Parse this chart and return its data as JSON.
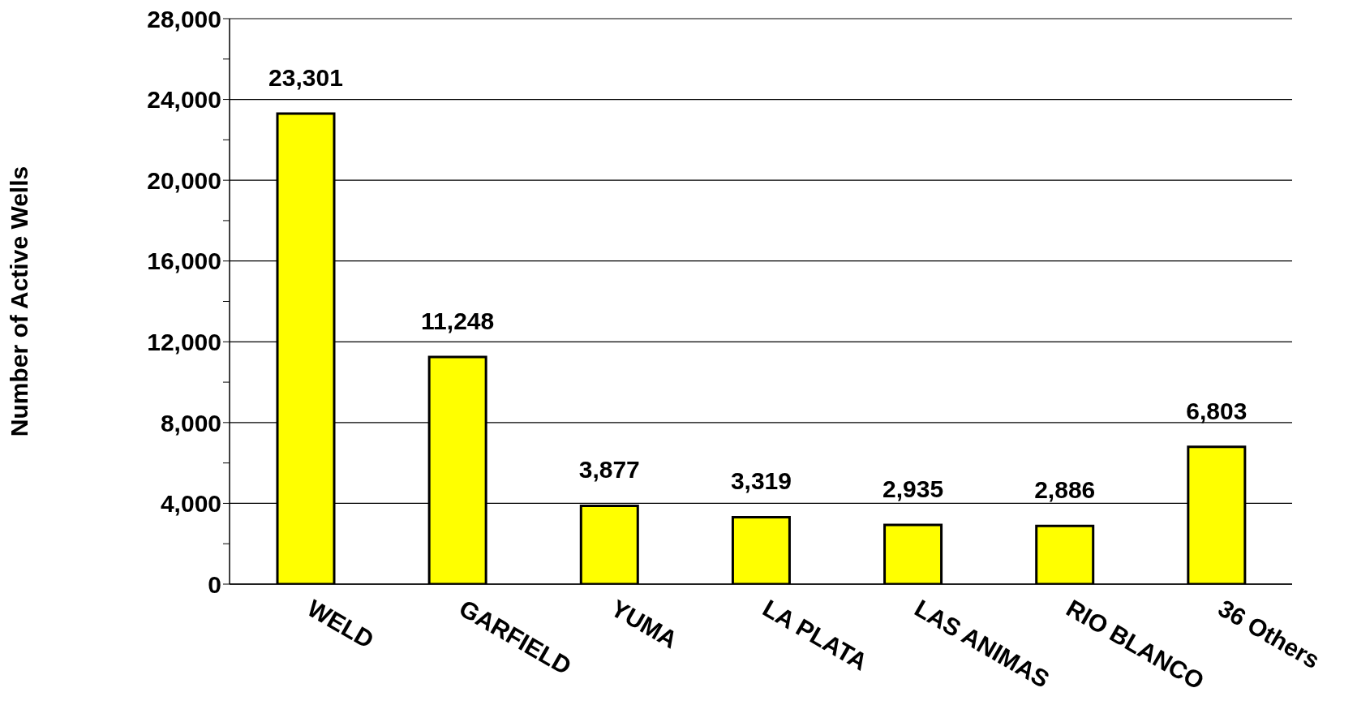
{
  "chart_data": {
    "type": "bar",
    "ylabel": "Number of Active Wells",
    "categories": [
      "WELD",
      "GARFIELD",
      "YUMA",
      "LA PLATA",
      "LAS ANIMAS",
      "RIO BLANCO",
      "36 Others"
    ],
    "values": [
      23301,
      11248,
      3877,
      3319,
      2935,
      2886,
      6803
    ],
    "value_labels": [
      "23,301",
      "11,248",
      "3,877",
      "3,319",
      "2,935",
      "2,886",
      "6,803"
    ],
    "color": "#ffff00",
    "ylim": [
      0,
      28000
    ],
    "yticks": [
      0,
      {
        "value": 2000,
        "label": null
      },
      {
        "value": 4000,
        "label": "4,000"
      },
      {
        "value": 6000,
        "label": null
      },
      {
        "value": 8000,
        "label": "8,000"
      },
      {
        "value": 10000,
        "label": null
      },
      {
        "value": 12000,
        "label": "12,000"
      },
      {
        "value": 14000,
        "label": null
      },
      {
        "value": 16000,
        "label": "16,000"
      },
      {
        "value": 18000,
        "label": null
      },
      {
        "value": 20000,
        "label": "20,000"
      },
      {
        "value": 22000,
        "label": null
      },
      {
        "value": 24000,
        "label": "24,000"
      },
      {
        "value": 26000,
        "label": null
      },
      {
        "value": 28000,
        "label": "28,000"
      }
    ],
    "grid": "y",
    "legend": false
  }
}
